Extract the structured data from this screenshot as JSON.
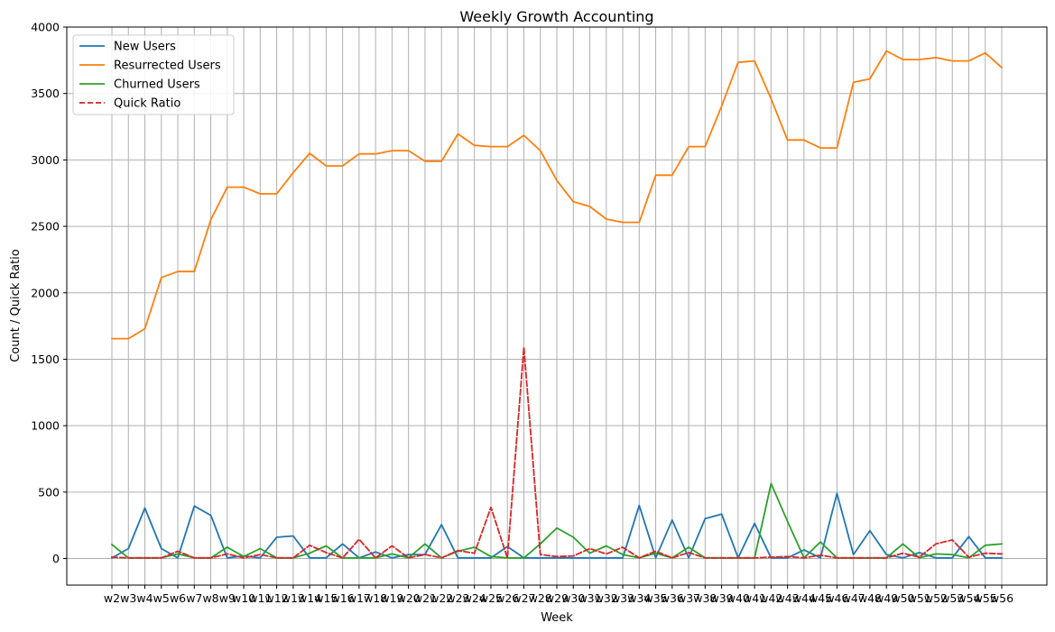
{
  "chart_data": {
    "type": "line",
    "title": "Weekly Growth Accounting",
    "xlabel": "Week",
    "ylabel": "Count / Quick Ratio",
    "ylim": [
      -200,
      4000
    ],
    "yticks": [
      0,
      500,
      1000,
      1500,
      2000,
      2500,
      3000,
      3500,
      4000
    ],
    "grid": true,
    "legend_position": "top-left",
    "categories": [
      "w2",
      "w3",
      "w4",
      "w5",
      "w6",
      "w7",
      "w8",
      "w9",
      "w10",
      "w11",
      "w12",
      "w13",
      "w14",
      "w15",
      "w16",
      "w17",
      "w18",
      "w19",
      "w20",
      "w21",
      "w22",
      "w23",
      "w24",
      "w25",
      "w26",
      "w27",
      "w28",
      "w29",
      "w30",
      "w31",
      "w32",
      "w33",
      "w34",
      "w35",
      "w36",
      "w37",
      "w38",
      "w39",
      "w40",
      "w41",
      "w42",
      "w43",
      "w44",
      "w45",
      "w46",
      "w47",
      "w48",
      "w49",
      "w50",
      "w51",
      "w52",
      "w53",
      "w54",
      "w55",
      "w56"
    ],
    "series": [
      {
        "name": "New Users",
        "color": "#1f77b4",
        "dash": false,
        "values": [
          5,
          75,
          380,
          75,
          5,
          395,
          325,
          5,
          20,
          5,
          160,
          170,
          5,
          5,
          110,
          5,
          50,
          5,
          30,
          30,
          255,
          5,
          5,
          5,
          90,
          5,
          5,
          5,
          5,
          5,
          5,
          5,
          400,
          5,
          290,
          5,
          300,
          335,
          5,
          265,
          5,
          5,
          65,
          5,
          490,
          30,
          210,
          30,
          5,
          45,
          5,
          5,
          165,
          5,
          5
        ]
      },
      {
        "name": "Resurrected Users",
        "color": "#ff7f0e",
        "dash": false,
        "values": [
          1655,
          1655,
          1730,
          2115,
          2160,
          2160,
          2550,
          2795,
          2795,
          2745,
          2745,
          2905,
          3050,
          2955,
          2955,
          3045,
          3045,
          3070,
          3070,
          2990,
          2990,
          3195,
          3110,
          3100,
          3100,
          3185,
          3070,
          2845,
          2685,
          2650,
          2555,
          2530,
          2530,
          2885,
          2885,
          3100,
          3100,
          3405,
          3735,
          3745,
          3460,
          3150,
          3150,
          3090,
          3090,
          3585,
          3610,
          3820,
          3755,
          3755,
          3770,
          3745,
          3745,
          3805,
          3695
        ]
      },
      {
        "name": "Churned Users",
        "color": "#2ca02c",
        "dash": false,
        "values": [
          105,
          5,
          5,
          5,
          35,
          5,
          5,
          85,
          15,
          75,
          5,
          5,
          40,
          95,
          5,
          5,
          5,
          35,
          5,
          110,
          5,
          55,
          85,
          15,
          5,
          5,
          110,
          230,
          160,
          40,
          95,
          30,
          5,
          40,
          5,
          85,
          5,
          5,
          5,
          5,
          565,
          280,
          5,
          125,
          5,
          5,
          5,
          5,
          110,
          5,
          35,
          30,
          5,
          100,
          110
        ]
      },
      {
        "name": "Quick Ratio",
        "color": "#d62728",
        "dash": true,
        "values": [
          10,
          5,
          5,
          5,
          55,
          5,
          5,
          35,
          5,
          30,
          5,
          5,
          100,
          45,
          5,
          145,
          5,
          95,
          5,
          30,
          5,
          60,
          40,
          385,
          5,
          1590,
          30,
          15,
          20,
          75,
          35,
          85,
          5,
          55,
          5,
          45,
          5,
          5,
          5,
          5,
          10,
          15,
          5,
          25,
          5,
          5,
          5,
          5,
          40,
          10,
          110,
          140,
          10,
          40,
          35
        ]
      }
    ]
  }
}
